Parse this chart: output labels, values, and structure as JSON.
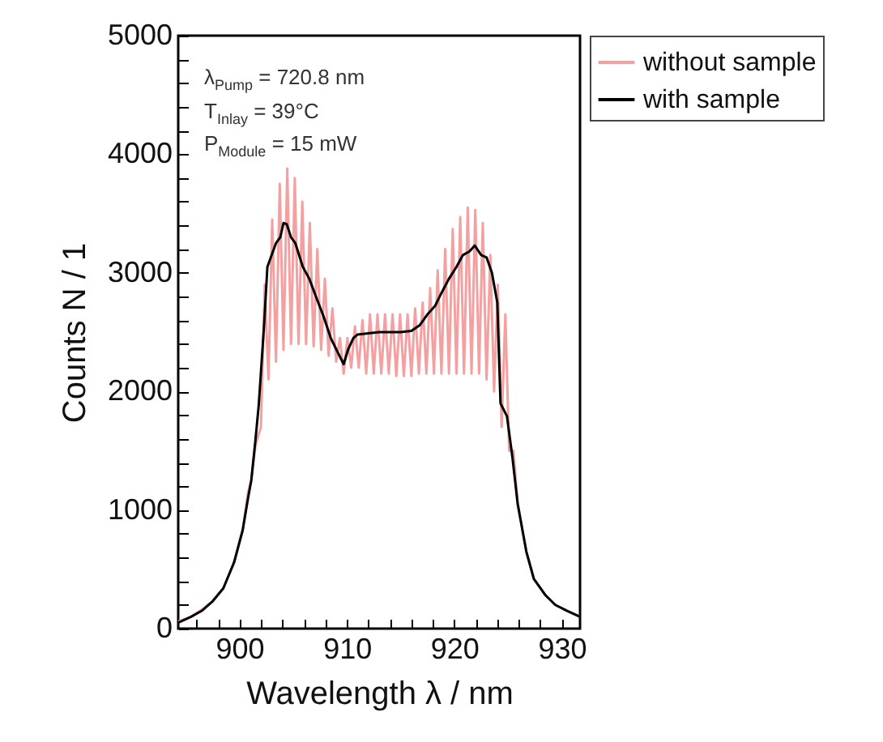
{
  "chart_data": {
    "type": "line",
    "xlabel": "Wavelength λ / nm",
    "ylabel": "Counts N / 1",
    "annotations": [
      "λ$_{Pump}$ = 720.8 nm",
      "T$_{Inlay}$ = 39°C",
      "P$_{Module}$ = 15 mW"
    ],
    "xlim": [
      894.3,
      931.7
    ],
    "ylim": [
      0,
      5000
    ],
    "xticks": [
      {
        "value": 896,
        "label": null
      },
      {
        "value": 898,
        "label": null
      },
      900,
      {
        "value": 902,
        "label": null
      },
      {
        "value": 904,
        "label": null
      },
      {
        "value": 906,
        "label": null
      },
      {
        "value": 908,
        "label": null
      },
      910,
      {
        "value": 912,
        "label": null
      },
      {
        "value": 914,
        "label": null
      },
      {
        "value": 916,
        "label": null
      },
      {
        "value": 918,
        "label": null
      },
      920,
      {
        "value": 922,
        "label": null
      },
      {
        "value": 924,
        "label": null
      },
      {
        "value": 926,
        "label": null
      },
      {
        "value": 928,
        "label": null
      },
      930
    ],
    "yticks": [
      0,
      {
        "value": 200,
        "label": null
      },
      {
        "value": 400,
        "label": null
      },
      {
        "value": 600,
        "label": null
      },
      {
        "value": 800,
        "label": null
      },
      1000,
      {
        "value": 1200,
        "label": null
      },
      {
        "value": 1400,
        "label": null
      },
      {
        "value": 1600,
        "label": null
      },
      {
        "value": 1800,
        "label": null
      },
      2000,
      {
        "value": 2200,
        "label": null
      },
      {
        "value": 2400,
        "label": null
      },
      {
        "value": 2600,
        "label": null
      },
      {
        "value": 2800,
        "label": null
      },
      3000,
      {
        "value": 3200,
        "label": null
      },
      {
        "value": 3400,
        "label": null
      },
      {
        "value": 3600,
        "label": null
      },
      {
        "value": 3800,
        "label": null
      },
      4000,
      {
        "value": 4200,
        "label": null
      },
      {
        "value": 4400,
        "label": null
      },
      {
        "value": 4600,
        "label": null
      },
      {
        "value": 4800,
        "label": null
      },
      5000
    ],
    "grid": false,
    "legend": "top right",
    "line_style": "solid",
    "series": [
      {
        "name": "without sample",
        "color": "#f4a0a0",
        "x": [
          894.3,
          895.5,
          896.5,
          897.5,
          898.5,
          899.5,
          900.3,
          900.8,
          901.1,
          901.5,
          902.0,
          902.35,
          902.7,
          903.05,
          903.4,
          903.75,
          904.1,
          904.45,
          904.8,
          905.15,
          905.5,
          905.85,
          906.2,
          906.55,
          906.9,
          907.25,
          907.6,
          907.95,
          908.3,
          908.65,
          909.0,
          909.35,
          909.7,
          910.05,
          910.4,
          910.75,
          911.1,
          911.45,
          911.8,
          912.15,
          912.5,
          912.85,
          913.2,
          913.55,
          913.9,
          914.25,
          914.6,
          914.95,
          915.3,
          915.65,
          916.0,
          916.35,
          916.7,
          917.05,
          917.4,
          917.75,
          918.1,
          918.45,
          918.8,
          919.15,
          919.5,
          919.85,
          920.2,
          920.55,
          920.9,
          921.25,
          921.6,
          921.95,
          922.3,
          922.65,
          923.0,
          923.35,
          923.7,
          924.05,
          924.4,
          924.75,
          925.1,
          925.5,
          925.9,
          926.7,
          927.4,
          928.5,
          929.4,
          930.5,
          931.7
        ],
        "values": [
          60,
          100,
          160,
          230,
          340,
          550,
          830,
          1150,
          1250,
          1550,
          1700,
          2900,
          2100,
          3450,
          2250,
          3750,
          2350,
          3880,
          2400,
          3800,
          2400,
          3600,
          2400,
          3420,
          2380,
          3200,
          2350,
          2950,
          2300,
          2700,
          2250,
          2450,
          2150,
          2450,
          2200,
          2550,
          2200,
          2600,
          2150,
          2650,
          2150,
          2650,
          2150,
          2650,
          2150,
          2650,
          2130,
          2650,
          2130,
          2650,
          2130,
          2700,
          2150,
          2750,
          2150,
          2870,
          2150,
          3020,
          2150,
          3200,
          2150,
          3370,
          2150,
          3470,
          2150,
          3550,
          2150,
          3530,
          2150,
          3420,
          2100,
          3150,
          2000,
          2900,
          1700,
          2650,
          1500,
          1500,
          1050,
          650,
          420,
          280,
          200,
          150,
          100
        ]
      },
      {
        "name": "with sample",
        "color": "#000000",
        "x": [
          894.3,
          895.5,
          896.5,
          897.5,
          898.5,
          899.5,
          900.3,
          900.8,
          901.1,
          901.5,
          901.8,
          902.3,
          902.6,
          903.0,
          903.4,
          903.8,
          904.1,
          904.4,
          904.8,
          905.2,
          905.9,
          906.5,
          907.2,
          907.8,
          908.5,
          909.2,
          909.7,
          910.1,
          910.6,
          911.0,
          912,
          913,
          914,
          915,
          916,
          916.8,
          917.5,
          918.2,
          918.8,
          919.5,
          920.2,
          920.8,
          921.4,
          921.9,
          922.5,
          923.0,
          923.5,
          924.0,
          924.3,
          924.9,
          925.4,
          925.9,
          926.7,
          927.4,
          928.5,
          929.4,
          930.5,
          931.7
        ],
        "values": [
          50,
          100,
          150,
          230,
          340,
          560,
          830,
          1100,
          1250,
          1600,
          1890,
          2570,
          3050,
          3150,
          3250,
          3300,
          3420,
          3410,
          3300,
          3250,
          3050,
          2950,
          2780,
          2640,
          2450,
          2320,
          2230,
          2350,
          2450,
          2480,
          2490,
          2500,
          2500,
          2500,
          2510,
          2560,
          2650,
          2720,
          2830,
          2950,
          3050,
          3150,
          3180,
          3230,
          3150,
          3130,
          3000,
          2750,
          1900,
          1790,
          1450,
          1050,
          650,
          420,
          280,
          200,
          150,
          100
        ]
      }
    ]
  }
}
